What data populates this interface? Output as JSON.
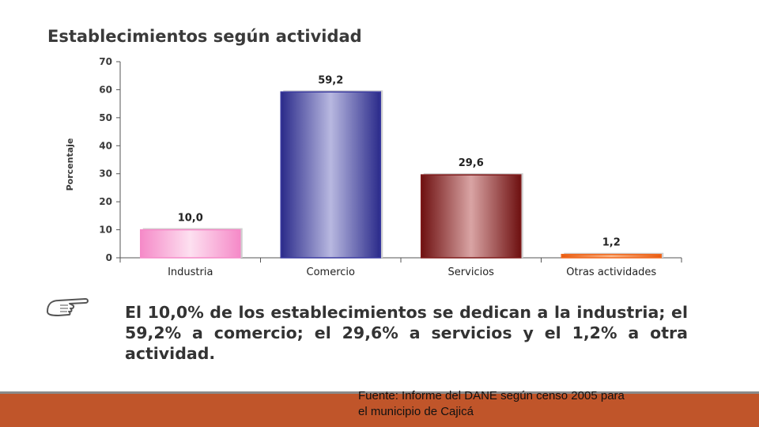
{
  "chart_data": {
    "type": "bar",
    "title": "Establecimientos según actividad",
    "ylabel": "Porcentaje",
    "xlabel": "",
    "ylim": [
      0,
      70
    ],
    "yticks": [
      0,
      10,
      20,
      30,
      40,
      50,
      60,
      70
    ],
    "categories": [
      "Industria",
      "Comercio",
      "Servicios",
      "Otras actividades"
    ],
    "values": [
      10.0,
      59.2,
      29.6,
      1.2
    ],
    "value_labels": [
      "10,0",
      "59,2",
      "29,6",
      "1,2"
    ],
    "colors": [
      "#f58ac8",
      "#3a3aa0",
      "#7f1a1a",
      "#f06a20"
    ],
    "grid": false,
    "legend": "none"
  },
  "summary_text": "El 10,0% de los establecimientos se dedican a la industria; el 59,2% a comercio; el 29,6% a servicios y el 1,2% a otra actividad.",
  "source_note_line1": "Fuente: Informe del DANE según censo 2005 para",
  "source_note_line2": "el municipio de Cajicá",
  "pointer_icon": "pointing-hand-icon",
  "footer_color": "#c0552a"
}
